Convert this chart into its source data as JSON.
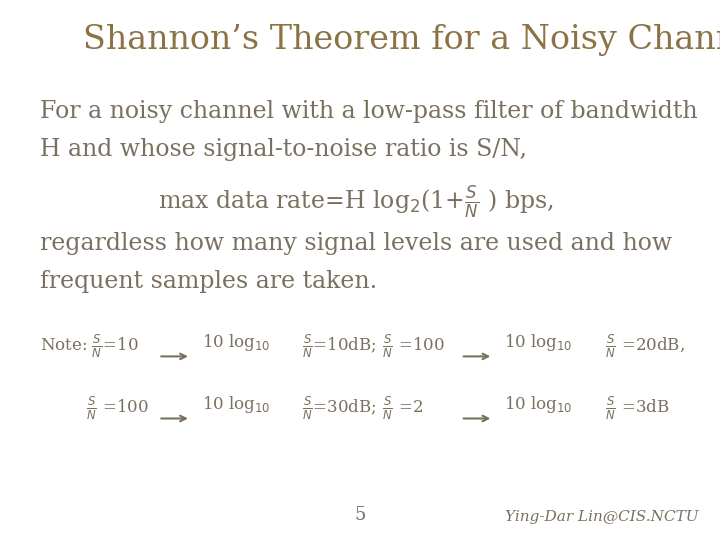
{
  "title": "Shannon’s Theorem for a Noisy Channel",
  "title_color": "#8B7345",
  "title_fontsize": 24,
  "body_color": "#7A7060",
  "body_fontsize": 17,
  "note_fontsize": 12,
  "bg_color": "#ffffff",
  "page_number": "5",
  "author": "Ying-Dar Lin@CIS.NCTU"
}
